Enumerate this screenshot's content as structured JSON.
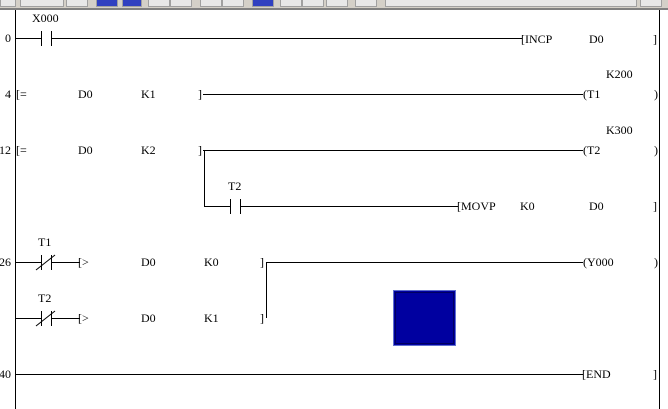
{
  "colors": {
    "cursor": "#0000a0",
    "rail": "#000000",
    "toolbar": "#d4d0c8"
  },
  "steps": [
    "0",
    "4",
    "12",
    "26",
    "40"
  ],
  "rung0": {
    "contact": "X000",
    "instr": "[INCP",
    "op1": "D0",
    "close": "]"
  },
  "rung4": {
    "cmp": "[=",
    "op1": "D0",
    "op2": "K1",
    "close": "]",
    "coil": "(T1",
    "setting": "K200",
    "coil_close": ")"
  },
  "rung12": {
    "cmp": "[=",
    "op1": "D0",
    "op2": "K2",
    "close": "]",
    "coil": "(T2",
    "setting": "K300",
    "coil_close": ")",
    "branch_contact": "T2",
    "branch_instr": "[MOVP",
    "branch_op1": "K0",
    "branch_op2": "D0",
    "branch_close": "]"
  },
  "rung26": {
    "contact1": "T1",
    "cmp1": "[>",
    "c1op1": "D0",
    "c1op2": "K0",
    "c1close": "]",
    "contact2": "T2",
    "cmp2": "[>",
    "c2op1": "D0",
    "c2op2": "K1",
    "c2close": "]",
    "coil": "(Y000",
    "coil_close": ")"
  },
  "rung40": {
    "instr": "[END",
    "close": "]"
  }
}
